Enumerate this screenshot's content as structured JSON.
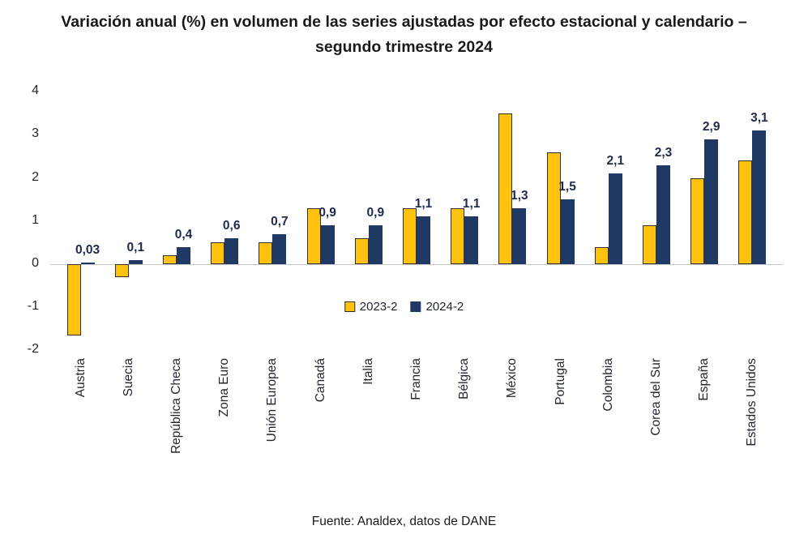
{
  "chart_data": {
    "type": "bar",
    "title": "Variación anual (%) en volumen de las series ajustadas por efecto estacional y calendario – segundo trimestre 2024",
    "categories": [
      "Austria",
      "Suecia",
      "República Checa",
      "Zona Euro",
      "Unión Europea",
      "Canadá",
      "Italia",
      "Francia",
      "Bélgica",
      "México",
      "Portugal",
      "Colombia",
      "Corea del Sur",
      "España",
      "Estados Unidos"
    ],
    "series": [
      {
        "name": "2023-2",
        "color": "#FFC20E",
        "values": [
          -1.65,
          -0.3,
          0.2,
          0.5,
          0.5,
          1.3,
          0.6,
          1.3,
          1.3,
          3.5,
          2.6,
          0.4,
          0.9,
          2.0,
          2.4
        ]
      },
      {
        "name": "2024-2",
        "color": "#1F3864",
        "values": [
          0.03,
          0.1,
          0.4,
          0.6,
          0.7,
          0.9,
          0.9,
          1.1,
          1.1,
          1.3,
          1.5,
          2.1,
          2.3,
          2.9,
          3.1
        ]
      }
    ],
    "data_labels": [
      "0,03",
      "0,1",
      "0,4",
      "0,6",
      "0,7",
      "0,9",
      "0,9",
      "1,1",
      "1,1",
      "1,3",
      "1,5",
      "2,1",
      "2,3",
      "2,9",
      "3,1"
    ],
    "yticks": [
      4,
      3,
      2,
      1,
      0,
      -1,
      -2
    ],
    "ylim": [
      -2,
      4
    ],
    "grid": false,
    "legend_position": "center-inside"
  },
  "footer": {
    "source": "Fuente: Analdex, datos de DANE"
  },
  "colors": {
    "axis_line": "#c9c9c9",
    "data_label": "#1F2A4D",
    "title": "#1a1a1a"
  }
}
